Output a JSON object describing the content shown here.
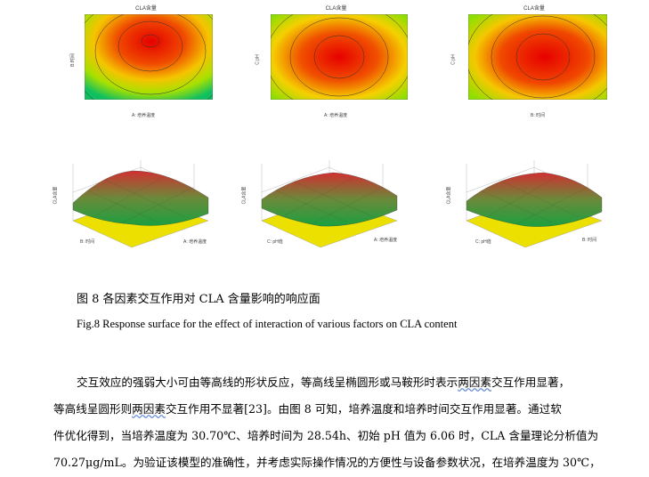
{
  "contours": [
    {
      "title": "CLA含量",
      "xlabel": "A: 培养温度",
      "ylabel": "B:时间"
    },
    {
      "title": "CLA含量",
      "xlabel": "A: 培养温度",
      "ylabel": "C:pH"
    },
    {
      "title": "CLA含量",
      "xlabel": "B: 时间",
      "ylabel": "C:pH"
    }
  ],
  "surfaces": [
    {
      "zlabel": "CLA含量",
      "xlabel": "B: 时间",
      "ylabel": "A: 培养温度"
    },
    {
      "zlabel": "CLA含量",
      "xlabel": "C: pH值",
      "ylabel": "A: 培养温度"
    },
    {
      "zlabel": "CLA含量",
      "xlabel": "C: pH值",
      "ylabel": "B: 时间"
    }
  ],
  "caption": {
    "cn": "图 8  各因素交互作用对 CLA 含量影响的响应面",
    "en": "Fig.8 Response surface for the effect of interaction of various factors on CLA content"
  },
  "paragraph": {
    "l1a": "交互效应的强弱大小可由等高线的形状反应，等高线呈椭圆形或马鞍形时表示",
    "l1b": "两因素",
    "l1c": "交互作用显著，",
    "l2a": "等高线呈圆形则",
    "l2b": "两因素",
    "l2c": "交互作用不显著[23]。由图 8 可知，培养温度和培养时间交互作用显著。通过软",
    "l3": "件优化得到，当培养温度为 30.70℃、培养时间为 28.54h、初始 pH 值为 6.06 时，CLA 含量理论分析值为",
    "l4": "70.27μg/mL。为验证该模型的准确性，并考虑实际操作情况的方便性与设备参数状况，在培养温度为 30℃，"
  }
}
